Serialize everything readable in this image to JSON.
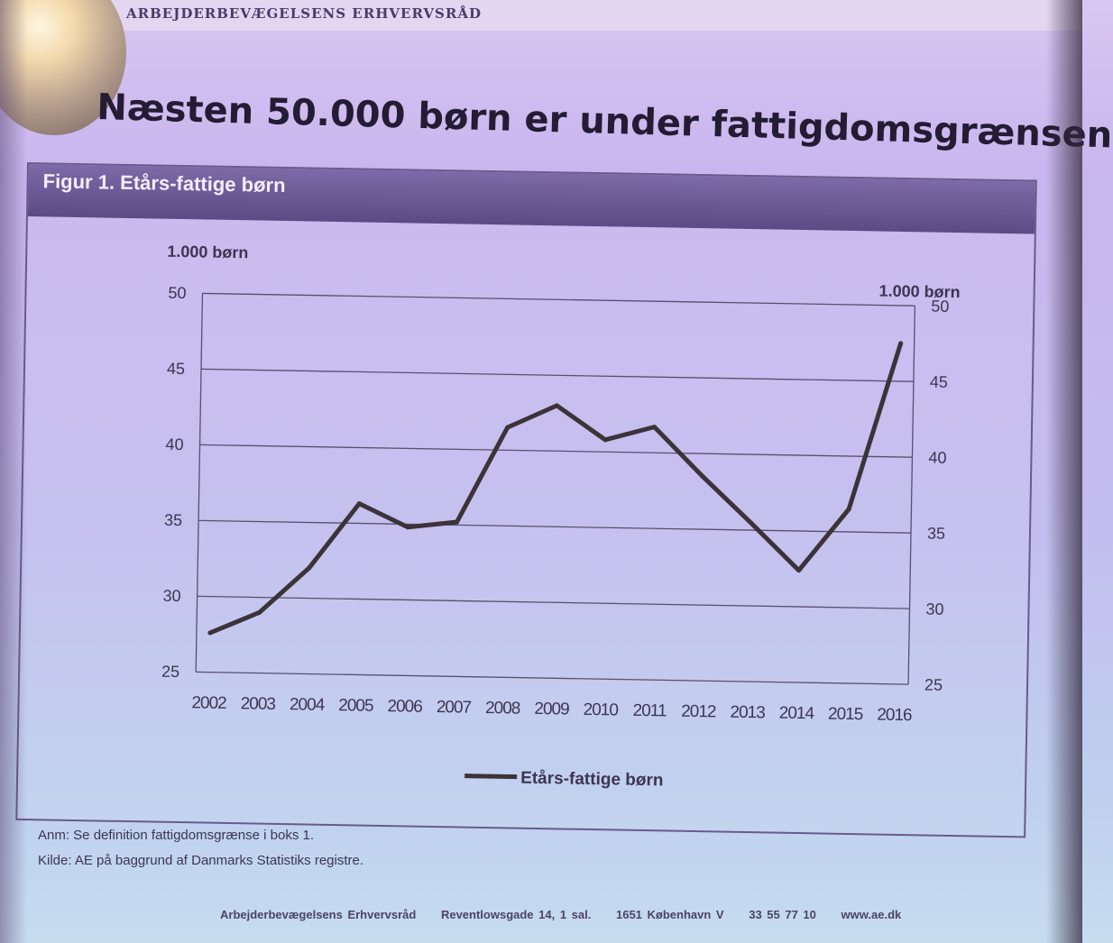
{
  "header": {
    "org_text": "ARBEJDERBEVÆGELSENS ERHVERVSRÅD"
  },
  "slide": {
    "title": "Næsten 50.000 børn er under fattigdomsgrænsen"
  },
  "figure": {
    "title": "Figur 1. Etårs-fattige børn"
  },
  "chart_data": {
    "type": "line",
    "title": "Figur 1. Etårs-fattige børn",
    "ylabel_left": "1.000 børn",
    "ylabel_right": "1.000 børn",
    "ylim": [
      25,
      50
    ],
    "yticks": [
      "25",
      "30",
      "35",
      "40",
      "45",
      "50"
    ],
    "grid": true,
    "legend_position": "bottom",
    "x": [
      "2002",
      "2003",
      "2004",
      "2005",
      "2006",
      "2007",
      "2008",
      "2009",
      "2010",
      "2011",
      "2012",
      "2013",
      "2014",
      "2015",
      "2016"
    ],
    "series": [
      {
        "name": "Etårs-fattige børn",
        "color": "#3b3338",
        "values": [
          27.6,
          29.0,
          32.0,
          36.3,
          34.8,
          35.2,
          41.5,
          43.0,
          40.8,
          41.7,
          38.5,
          35.5,
          32.4,
          36.5,
          47.5
        ]
      }
    ]
  },
  "notes": {
    "anm": "Anm: Se definition fattigdomsgrænse i boks 1.",
    "kilde": "Kilde: AE på baggrund af Danmarks Statistiks registre."
  },
  "footer": {
    "org": "Arbejderbevægelsens Erhvervsråd",
    "address": "Reventlowsgade 14, 1 sal.",
    "city": "1651 København V",
    "phone": "33 55 77 10",
    "web": "www.ae.dk"
  }
}
